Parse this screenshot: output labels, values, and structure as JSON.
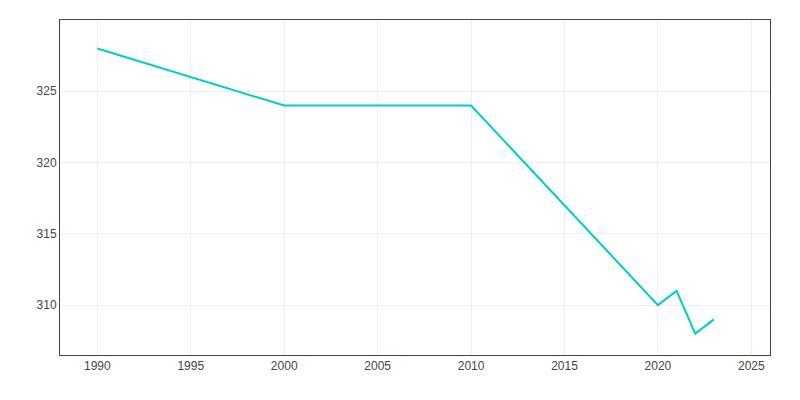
{
  "chart_data": {
    "type": "line",
    "x": [
      1990,
      2000,
      2010,
      2020,
      2021,
      2022,
      2023
    ],
    "values": [
      328,
      324,
      324,
      310,
      311,
      308,
      309
    ],
    "color": "#00CCCC",
    "xlim": [
      1988,
      2026
    ],
    "ylim": [
      306.5,
      330
    ],
    "xticks": [
      1990,
      1995,
      2000,
      2005,
      2010,
      2015,
      2020,
      2025
    ],
    "yticks": [
      310,
      315,
      320,
      325
    ],
    "grid": true
  }
}
